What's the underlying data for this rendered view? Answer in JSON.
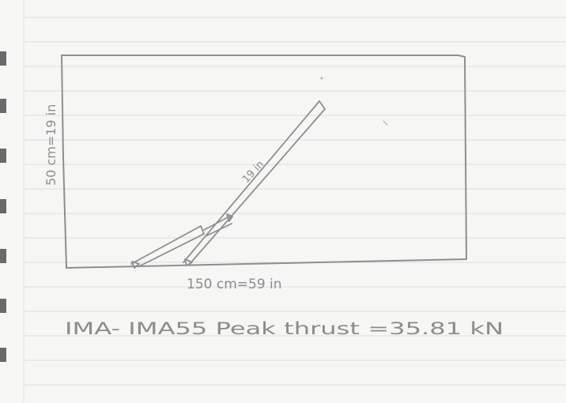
{
  "sketch": {
    "height_label": "50 cm=19 in",
    "width_label": "150 cm=59 in",
    "rod_label": "19 in",
    "caption": "IMA- IMA55 Peak thrust =35.81 kN"
  },
  "colors": {
    "paper": "#f6f6f4",
    "ruled_line": "#dcdfe3",
    "pencil": "#8e8e8e",
    "binder_hole": "#6a6a6a"
  }
}
